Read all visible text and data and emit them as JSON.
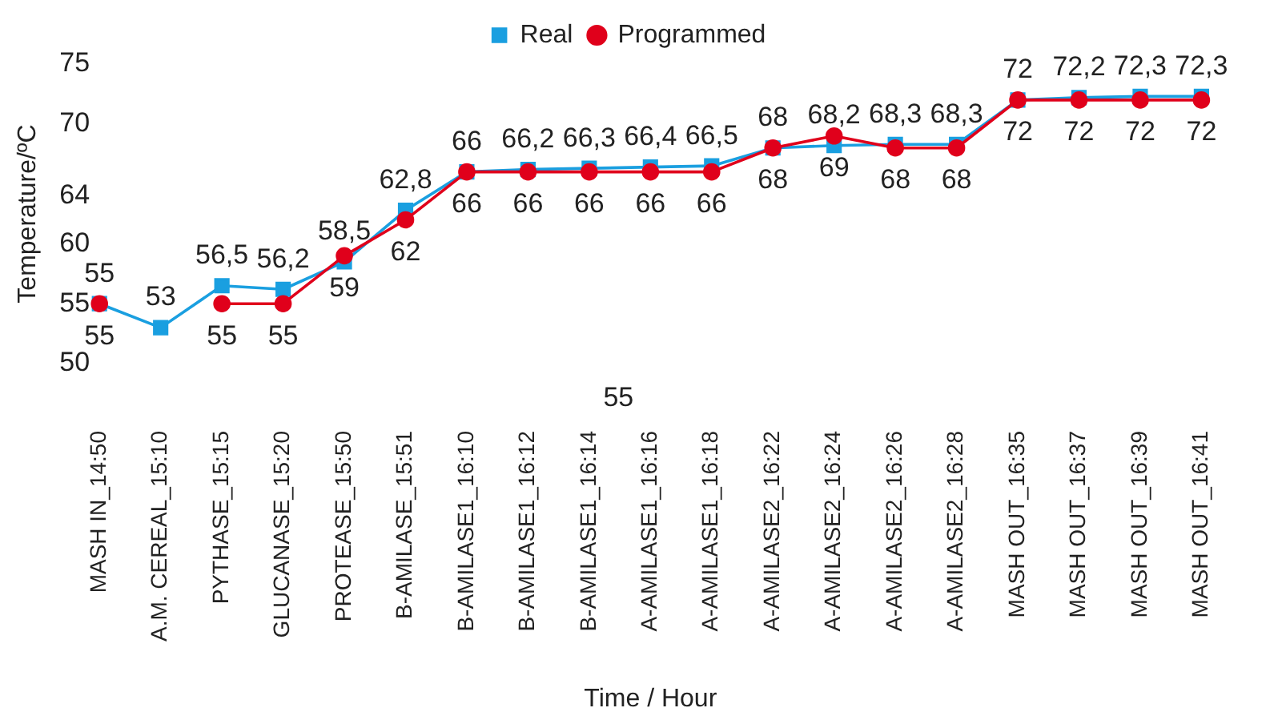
{
  "chart_data": {
    "type": "line",
    "xlabel": "Time / Hour",
    "ylabel": "Temperature/ºC",
    "categories": [
      "MASH IN_14:50",
      "A.M. CEREAL_15:10",
      "PYTHASE_15:15",
      "GLUCANASE_15:20",
      "PROTEASE_15:50",
      "B-AMILASE_15:51",
      "B-AMILASE1_16:10",
      "B-AMILASE1_16:12",
      "B-AMILASE1_16:14",
      "A-AMILASE1_16:16",
      "A-AMILASE1_16:18",
      "A-AMILASE2_16:22",
      "A-AMILASE2_16:24",
      "A-AMILASE2_16:26",
      "A-AMILASE2_16:28",
      "MASH OUT_16:35",
      "MASH OUT_16:37",
      "MASH OUT_16:39",
      "MASH OUT_16:41"
    ],
    "series": [
      {
        "name": "Real",
        "color": "#1a9fe0",
        "marker": "square",
        "values": [
          55,
          53,
          56.5,
          56.2,
          58.5,
          62.8,
          66,
          66.2,
          66.3,
          66.4,
          66.5,
          68,
          68.2,
          68.3,
          68.3,
          72,
          72.2,
          72.3,
          72.3
        ],
        "value_labels": [
          "55",
          "53",
          "56,5",
          "56,2",
          "58,5",
          "62,8",
          "66",
          "66,2",
          "66,3",
          "66,4",
          "66,5",
          "68",
          "68,2",
          "68,3",
          "68,3",
          "72",
          "72,2",
          "72,3",
          "72,3"
        ]
      },
      {
        "name": "Programmed",
        "color": "#e0001b",
        "marker": "circle",
        "values": [
          55,
          null,
          55,
          55,
          59,
          62,
          66,
          66,
          66,
          66,
          66,
          68,
          69,
          68,
          68,
          72,
          72,
          72,
          72
        ],
        "value_labels": [
          "55",
          null,
          "55",
          "55",
          "59",
          "62",
          "66",
          "66",
          "66",
          "66",
          "66",
          "68",
          "69",
          "68",
          "68",
          "72",
          "72",
          "72",
          "72"
        ]
      }
    ],
    "ylim": [
      50,
      75
    ],
    "yticks": [
      50,
      55,
      60,
      64,
      70,
      75
    ],
    "grid": false,
    "legend": "top",
    "annotations": [
      "55"
    ]
  }
}
